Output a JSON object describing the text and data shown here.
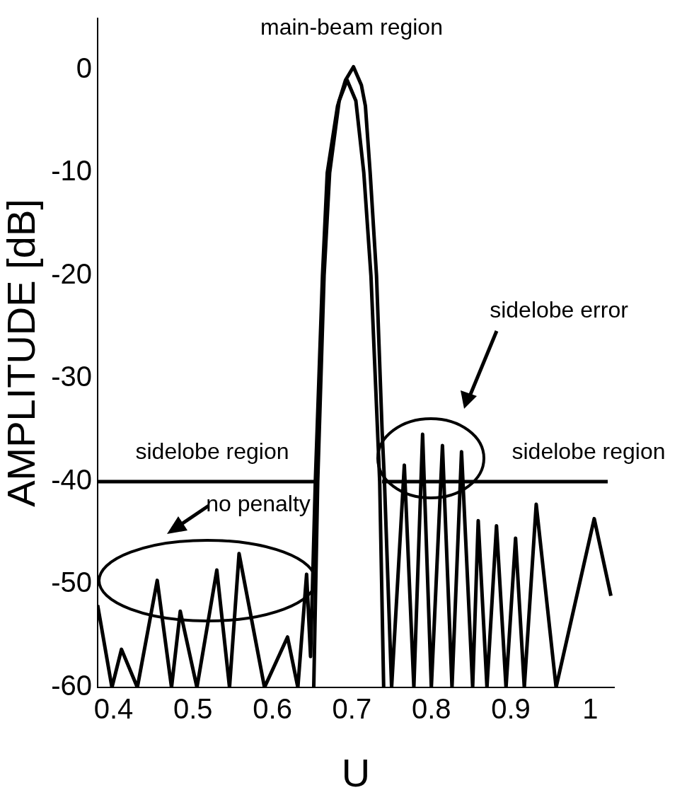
{
  "chart_data": {
    "type": "line",
    "xlabel": "U",
    "ylabel": "AMPLITUDE [dB]",
    "xlim": [
      0.38,
      1.03
    ],
    "ylim": [
      -60,
      5
    ],
    "xticks": [
      0.4,
      0.5,
      0.6,
      0.7,
      0.8,
      0.9,
      1
    ],
    "yticks": [
      -60,
      -50,
      -40,
      -30,
      -20,
      -10,
      0
    ],
    "marker": "none",
    "series": [
      {
        "color": "#000000",
        "x": [
          0.38,
          0.398,
          0.41,
          0.43,
          0.455,
          0.473,
          0.484,
          0.505,
          0.53,
          0.546,
          0.558,
          0.59,
          0.619,
          0.632,
          0.643,
          0.648,
          0.654,
          0.663,
          0.669,
          0.682,
          0.692,
          0.702,
          0.712,
          0.717,
          0.723,
          0.731,
          0.738,
          0.741,
          0.75,
          0.766,
          0.778,
          0.789,
          0.8,
          0.814,
          0.826,
          0.838,
          0.852,
          0.859,
          0.87,
          0.882,
          0.894,
          0.906,
          0.917,
          0.932,
          0.957,
          1.005,
          1.026
        ],
        "values": [
          -52,
          -60,
          -56.3,
          -60,
          -49.6,
          -60,
          -52.6,
          -60,
          -48.6,
          -60,
          -47,
          -60,
          -55.1,
          -60,
          -49,
          -57,
          -40,
          -20,
          -10,
          -3.5,
          -1,
          0.3,
          -1.5,
          -3.5,
          -10,
          -20,
          -35,
          -40,
          -60,
          -38.4,
          -60,
          -35.4,
          -60,
          -36.5,
          -60,
          -37.1,
          -60,
          -43.8,
          -60,
          -44.3,
          -60,
          -45.5,
          -60,
          -42.2,
          -60,
          -43.6,
          -51.1
        ]
      },
      {
        "color": "#000000",
        "x": [
          0.652,
          0.657,
          0.665,
          0.672,
          0.684,
          0.694,
          0.705,
          0.715,
          0.724,
          0.735,
          0.74
        ],
        "values": [
          -60,
          -40,
          -20,
          -10,
          -3,
          -1,
          -3,
          -10,
          -20,
          -40,
          -60
        ]
      },
      {
        "color": "#000000",
        "x": [
          0.38,
          0.655,
          0.7,
          0.738,
          1.022
        ],
        "values": [
          -40,
          -40,
          null,
          -40,
          -40
        ]
      }
    ],
    "annotations": [
      "main-beam region",
      "sidelobe region",
      "no penalty",
      "sidelobe error",
      "sidelobe region"
    ]
  }
}
